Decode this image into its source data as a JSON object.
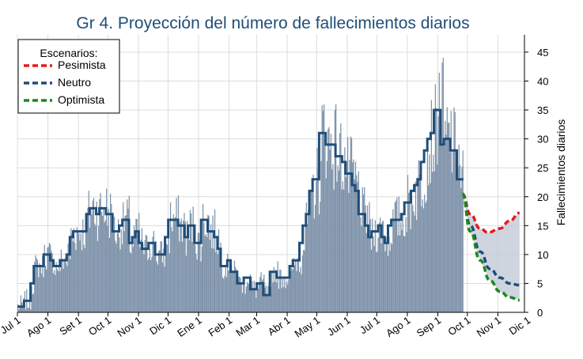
{
  "chart_data": {
    "type": "bar",
    "title": "Gr 4. Proyección del número de fallecimientos diarios",
    "ylabel": "Fallecimientos diarios",
    "xlabel": "",
    "ylim": [
      0,
      48
    ],
    "yticks": [
      0,
      5,
      10,
      15,
      20,
      25,
      30,
      35,
      40,
      45
    ],
    "xlim_days": [
      0,
      515
    ],
    "month_ticks": [
      {
        "label": "Jul 1",
        "day": 0
      },
      {
        "label": "Ago 1",
        "day": 31
      },
      {
        "label": "Set 1",
        "day": 62
      },
      {
        "label": "Oct 1",
        "day": 92
      },
      {
        "label": "Nov 1",
        "day": 123
      },
      {
        "label": "Dic 1",
        "day": 153
      },
      {
        "label": "Ene 1",
        "day": 184
      },
      {
        "label": "Feb 1",
        "day": 215
      },
      {
        "label": "Mar 1",
        "day": 243
      },
      {
        "label": "Abr 1",
        "day": 274
      },
      {
        "label": "May 1",
        "day": 304
      },
      {
        "label": "Jun 1",
        "day": 335
      },
      {
        "label": "Jul 1",
        "day": 365
      },
      {
        "label": "Ago 1",
        "day": 396
      },
      {
        "label": "Sep 1",
        "day": 427
      },
      {
        "label": "Oct 1",
        "day": 457
      },
      {
        "label": "Nov 1",
        "day": 488
      },
      {
        "label": "Dic 1",
        "day": 518
      }
    ],
    "weekly_avg": [
      1,
      1,
      2,
      2,
      5,
      8,
      8,
      8,
      10,
      10,
      9,
      8,
      8,
      9,
      9,
      10,
      13,
      14,
      14,
      14,
      14,
      17,
      18,
      18,
      17,
      18,
      18,
      17,
      17,
      14,
      14,
      15,
      16,
      16,
      12,
      13,
      14,
      12,
      11,
      11,
      12,
      12,
      10,
      10,
      10,
      13,
      16,
      16,
      16,
      15,
      15,
      13,
      15,
      15,
      12,
      12,
      16,
      16,
      14,
      14,
      13,
      11,
      8,
      8,
      9,
      7,
      7,
      5,
      5,
      6,
      6,
      4,
      4,
      5,
      5,
      3,
      3,
      7,
      7,
      6,
      6,
      6,
      6,
      8,
      9,
      9,
      12,
      15,
      17,
      21,
      23,
      23,
      31,
      31,
      29,
      29,
      29,
      27,
      27,
      26,
      24,
      24,
      22,
      21,
      17,
      17,
      15,
      13,
      14,
      14,
      15,
      13,
      12,
      15,
      16,
      16,
      16,
      17,
      19,
      19,
      21,
      22,
      23,
      26,
      28,
      30,
      31,
      35,
      35,
      29,
      30,
      30,
      28,
      28,
      23,
      23
    ],
    "last_observed_day": 452,
    "series": [
      {
        "name": "Pesimista",
        "color": "#e8191c",
        "x": [
          452,
          460,
          470,
          478,
          490,
          500,
          510
        ],
        "values": [
          20.5,
          17,
          14.5,
          13.8,
          14.5,
          15.8,
          17.2
        ]
      },
      {
        "name": "Neutro",
        "color": "#1f4e79",
        "x": [
          452,
          460,
          470,
          480,
          490,
          500,
          510
        ],
        "values": [
          20.5,
          15,
          10.5,
          7.5,
          6,
          5,
          4.7
        ]
      },
      {
        "name": "Optimista",
        "color": "#1a8a1a",
        "x": [
          452,
          460,
          470,
          480,
          490,
          500,
          510
        ],
        "values": [
          20.5,
          14,
          9,
          5.5,
          3.6,
          2.6,
          2.1
        ]
      }
    ],
    "legend": {
      "title": "Escenarios:",
      "position": "top-left"
    }
  }
}
